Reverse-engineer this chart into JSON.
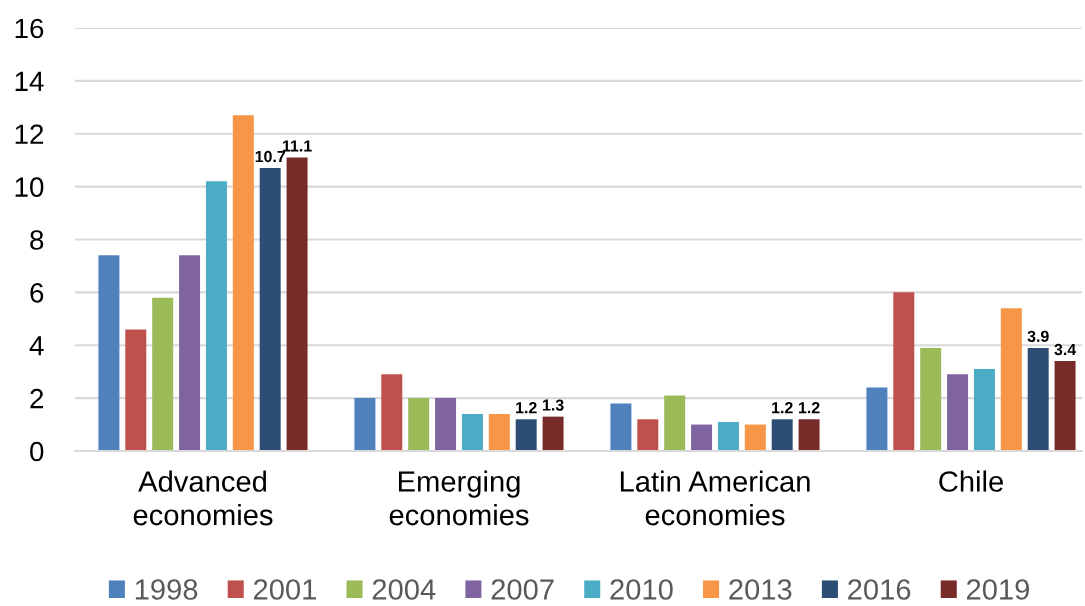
{
  "chart_data": {
    "type": "bar",
    "categories": [
      "Advanced economies",
      "Emerging economies",
      "Latin American economies",
      "Chile"
    ],
    "series": [
      {
        "name": "1998",
        "color": "#4f81bd",
        "values": [
          7.4,
          2.0,
          1.8,
          2.4
        ]
      },
      {
        "name": "2001",
        "color": "#c0504d",
        "values": [
          4.6,
          2.9,
          1.2,
          6.0
        ]
      },
      {
        "name": "2004",
        "color": "#9bbb59",
        "values": [
          5.8,
          2.0,
          2.1,
          3.9
        ]
      },
      {
        "name": "2007",
        "color": "#8064a2",
        "values": [
          7.4,
          2.0,
          1.0,
          2.9
        ]
      },
      {
        "name": "2010",
        "color": "#4bacc6",
        "values": [
          10.2,
          1.4,
          1.1,
          3.1
        ]
      },
      {
        "name": "2013",
        "color": "#f79646",
        "values": [
          12.7,
          1.4,
          1.0,
          5.4
        ]
      },
      {
        "name": "2016",
        "color": "#2c4d75",
        "values": [
          10.7,
          1.2,
          1.2,
          3.9
        ],
        "value_labels": [
          "10.7",
          "1.2",
          "1.2",
          "3.9"
        ]
      },
      {
        "name": "2019",
        "color": "#772c2a",
        "values": [
          11.1,
          1.3,
          1.2,
          3.4
        ],
        "value_labels": [
          "11.1",
          "1.3",
          "1.2",
          "3.4"
        ]
      }
    ],
    "ylim": [
      0,
      16
    ],
    "yticks": [
      0,
      2,
      4,
      6,
      8,
      10,
      12,
      14,
      16
    ],
    "grid": "y",
    "legend": "bottom"
  }
}
